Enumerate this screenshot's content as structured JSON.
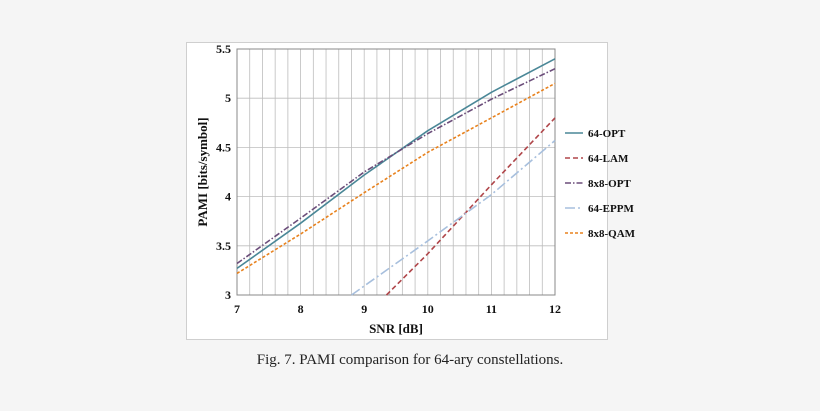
{
  "caption": "Fig. 7.  PAMI comparison for 64-ary constellations.",
  "chart_data": {
    "type": "line",
    "title": "",
    "xlabel": "SNR [dB]",
    "ylabel": "PAMI [bits/symbol]",
    "xlim": [
      7,
      12
    ],
    "ylim": [
      3,
      5.5
    ],
    "grid": true,
    "legend_position": "right",
    "x_ticks": [
      "7",
      "8",
      "9",
      "10",
      "11",
      "12"
    ],
    "y_ticks": [
      "3",
      "3.5",
      "4",
      "4.5",
      "5",
      "5.5"
    ],
    "series": [
      {
        "name": "64-OPT",
        "color": "#4a8797",
        "dash": "solid",
        "x": [
          7,
          8,
          9,
          10,
          11,
          12
        ],
        "y": [
          3.27,
          3.73,
          4.22,
          4.67,
          5.06,
          5.4
        ]
      },
      {
        "name": "64-LAM",
        "color": "#b0464a",
        "dash": "dashed",
        "x": [
          9.35,
          10,
          11,
          12
        ],
        "y": [
          3.0,
          3.42,
          4.12,
          4.8
        ]
      },
      {
        "name": "8x8-OPT",
        "color": "#6b4d7a",
        "dash": "dashdot",
        "x": [
          7,
          8,
          9,
          10,
          11,
          12
        ],
        "y": [
          3.32,
          3.78,
          4.25,
          4.64,
          4.99,
          5.3
        ]
      },
      {
        "name": "64-EPPM",
        "color": "#a7bfdd",
        "dash": "longdashdot",
        "x": [
          8.8,
          10,
          11,
          12
        ],
        "y": [
          3.0,
          3.55,
          4.02,
          4.57
        ]
      },
      {
        "name": "8x8-QAM",
        "color": "#e8821e",
        "dash": "dotted",
        "x": [
          7,
          8,
          9,
          10,
          11,
          12
        ],
        "y": [
          3.22,
          3.62,
          4.04,
          4.45,
          4.8,
          5.15
        ]
      }
    ]
  }
}
